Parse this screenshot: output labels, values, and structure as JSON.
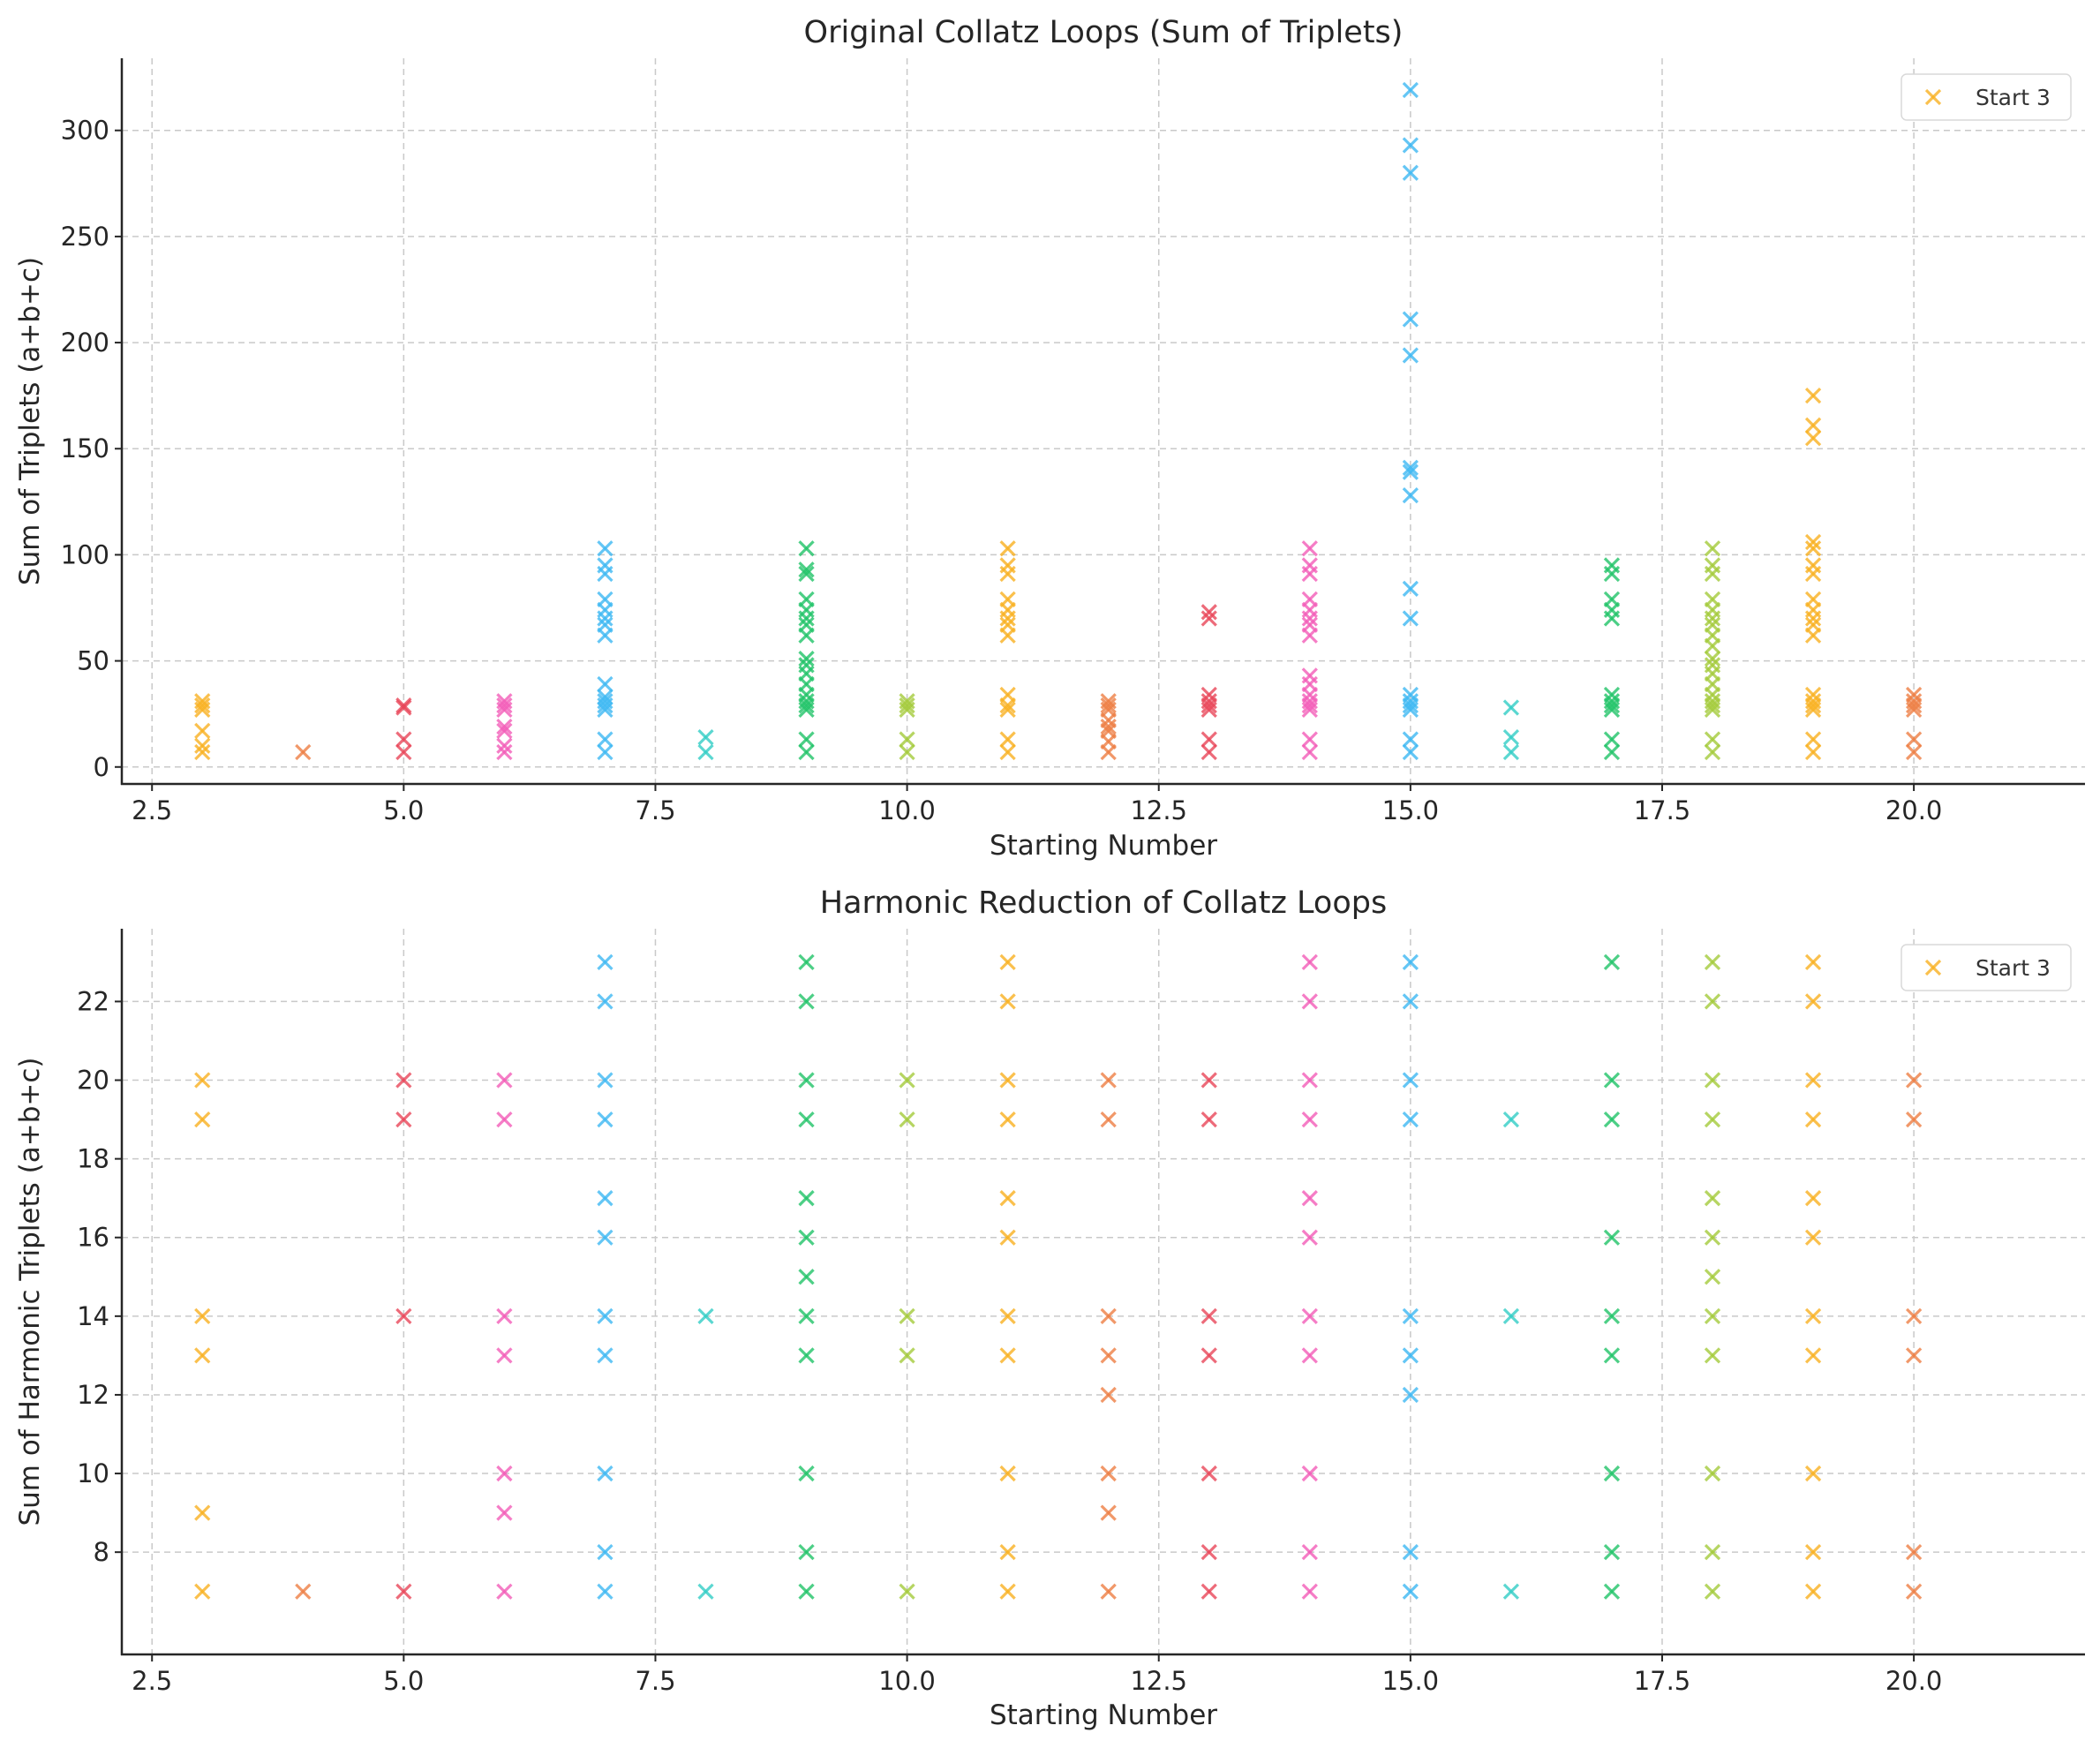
{
  "figure": {
    "background": "#ffffff"
  },
  "palette": {
    "3": "#F9B020",
    "4": "#EE7E43",
    "5": "#E94659",
    "6": "#F25CB8",
    "7": "#3DB8F2",
    "8": "#32CDC5",
    "9": "#21C368",
    "10": "#A4CB3B",
    "11": "#F9B020",
    "12": "#EE7E43",
    "13": "#E94659",
    "14": "#F25CB8",
    "15": "#3DB8F2",
    "16": "#32CDC5",
    "17": "#21C368",
    "18": "#A4CB3B",
    "19": "#F9B020",
    "20": "#EE7E43"
  },
  "chart_data": [
    {
      "type": "scatter",
      "marker": "x",
      "title": "Original Collatz Loops (Sum of Triplets)",
      "xlabel": "Starting Number",
      "ylabel": "Sum of Triplets (a+b+c)",
      "xlim": [
        2.2,
        21.7
      ],
      "ylim": [
        -8,
        334
      ],
      "xticks": [
        2.5,
        5.0,
        7.5,
        10.0,
        12.5,
        15.0,
        17.5,
        20.0
      ],
      "xtick_labels": [
        "2.5",
        "5.0",
        "7.5",
        "10.0",
        "12.5",
        "15.0",
        "17.5",
        "20.0"
      ],
      "yticks": [
        0,
        50,
        100,
        150,
        200,
        250,
        300
      ],
      "ytick_labels": [
        "0",
        "50",
        "100",
        "150",
        "200",
        "250",
        "300"
      ],
      "grid": true,
      "legend": {
        "position": "top-right",
        "entries": [
          {
            "label": "Start 3",
            "color": "#F9B020"
          }
        ]
      },
      "series": [
        {
          "start": 3,
          "x": 3,
          "y": [
            7,
            10,
            17,
            27,
            29,
            31
          ]
        },
        {
          "start": 4,
          "x": 4,
          "y": [
            7
          ]
        },
        {
          "start": 5,
          "x": 5,
          "y": [
            7,
            13,
            28,
            29
          ]
        },
        {
          "start": 6,
          "x": 6,
          "y": [
            7,
            10,
            17,
            19,
            27,
            29,
            31
          ]
        },
        {
          "start": 7,
          "x": 7,
          "y": [
            7,
            13,
            27,
            29,
            31,
            33,
            39,
            62,
            67,
            70,
            74,
            79,
            91,
            95,
            103
          ]
        },
        {
          "start": 8,
          "x": 8,
          "y": [
            7,
            14
          ]
        },
        {
          "start": 9,
          "x": 9,
          "y": [
            7,
            13,
            27,
            29,
            31,
            34,
            39,
            44,
            48,
            51,
            62,
            67,
            70,
            74,
            79,
            91,
            93,
            103
          ]
        },
        {
          "start": 10,
          "x": 10,
          "y": [
            7,
            13,
            27,
            29,
            31
          ]
        },
        {
          "start": 11,
          "x": 11,
          "y": [
            7,
            13,
            27,
            29,
            34,
            62,
            67,
            70,
            74,
            79,
            91,
            95,
            103
          ]
        },
        {
          "start": 12,
          "x": 12,
          "y": [
            7,
            12,
            17,
            19,
            22,
            27,
            29,
            31
          ]
        },
        {
          "start": 13,
          "x": 13,
          "y": [
            7,
            13,
            27,
            29,
            31,
            34,
            70,
            73
          ]
        },
        {
          "start": 14,
          "x": 14,
          "y": [
            7,
            13,
            27,
            29,
            31,
            34,
            39,
            43,
            62,
            67,
            70,
            74,
            79,
            91,
            95,
            103
          ]
        },
        {
          "start": 15,
          "x": 15,
          "y": [
            7,
            13,
            27,
            29,
            31,
            34,
            70,
            84,
            128,
            139,
            141,
            194,
            211,
            280,
            293,
            319
          ]
        },
        {
          "start": 16,
          "x": 16,
          "y": [
            7,
            14,
            28
          ]
        },
        {
          "start": 17,
          "x": 17,
          "y": [
            7,
            13,
            27,
            29,
            31,
            34,
            70,
            74,
            79,
            91,
            95
          ]
        },
        {
          "start": 18,
          "x": 18,
          "y": [
            7,
            13,
            27,
            29,
            31,
            34,
            39,
            44,
            48,
            51,
            57,
            62,
            67,
            70,
            74,
            79,
            91,
            95,
            103
          ]
        },
        {
          "start": 19,
          "x": 19,
          "y": [
            7,
            13,
            27,
            29,
            31,
            34,
            62,
            67,
            70,
            74,
            79,
            91,
            95,
            103,
            106,
            155,
            161,
            175
          ]
        },
        {
          "start": 20,
          "x": 20,
          "y": [
            7,
            13,
            27,
            29,
            31,
            34
          ]
        }
      ]
    },
    {
      "type": "scatter",
      "marker": "x",
      "title": "Harmonic Reduction of Collatz Loops",
      "xlabel": "Starting Number",
      "ylabel": "Sum of Harmonic Triplets (a+b+c)",
      "xlim": [
        2.2,
        21.7
      ],
      "ylim": [
        5.4,
        23.85
      ],
      "xticks": [
        2.5,
        5.0,
        7.5,
        10.0,
        12.5,
        15.0,
        17.5,
        20.0
      ],
      "xtick_labels": [
        "2.5",
        "5.0",
        "7.5",
        "10.0",
        "12.5",
        "15.0",
        "17.5",
        "20.0"
      ],
      "yticks": [
        8,
        10,
        12,
        14,
        16,
        18,
        20,
        22
      ],
      "ytick_labels": [
        "8",
        "10",
        "12",
        "14",
        "16",
        "18",
        "20",
        "22"
      ],
      "grid": true,
      "legend": {
        "position": "top-right",
        "entries": [
          {
            "label": "Start 3",
            "color": "#F9B020"
          }
        ]
      },
      "series": [
        {
          "start": 3,
          "x": 3,
          "y": [
            7,
            9,
            13,
            14,
            19,
            20
          ]
        },
        {
          "start": 4,
          "x": 4,
          "y": [
            7
          ]
        },
        {
          "start": 5,
          "x": 5,
          "y": [
            7,
            14,
            19,
            20
          ]
        },
        {
          "start": 6,
          "x": 6,
          "y": [
            7,
            9,
            10,
            13,
            14,
            19,
            20
          ]
        },
        {
          "start": 7,
          "x": 7,
          "y": [
            7,
            8,
            10,
            13,
            14,
            16,
            17,
            19,
            20,
            22,
            23
          ]
        },
        {
          "start": 8,
          "x": 8,
          "y": [
            7,
            14
          ]
        },
        {
          "start": 9,
          "x": 9,
          "y": [
            7,
            8,
            10,
            13,
            14,
            15,
            16,
            17,
            19,
            20,
            22,
            23
          ]
        },
        {
          "start": 10,
          "x": 10,
          "y": [
            7,
            13,
            14,
            19,
            20
          ]
        },
        {
          "start": 11,
          "x": 11,
          "y": [
            7,
            8,
            10,
            13,
            14,
            16,
            17,
            19,
            20,
            22,
            23
          ]
        },
        {
          "start": 12,
          "x": 12,
          "y": [
            7,
            9,
            10,
            12,
            13,
            14,
            19,
            20
          ]
        },
        {
          "start": 13,
          "x": 13,
          "y": [
            7,
            8,
            10,
            13,
            14,
            19,
            20
          ]
        },
        {
          "start": 14,
          "x": 14,
          "y": [
            7,
            8,
            10,
            13,
            14,
            16,
            17,
            19,
            20,
            22,
            23
          ]
        },
        {
          "start": 15,
          "x": 15,
          "y": [
            7,
            8,
            12,
            13,
            14,
            19,
            20,
            22,
            23
          ]
        },
        {
          "start": 16,
          "x": 16,
          "y": [
            7,
            14,
            19
          ]
        },
        {
          "start": 17,
          "x": 17,
          "y": [
            7,
            8,
            10,
            13,
            14,
            16,
            19,
            20,
            23
          ]
        },
        {
          "start": 18,
          "x": 18,
          "y": [
            7,
            8,
            10,
            13,
            14,
            15,
            16,
            17,
            19,
            20,
            22,
            23
          ]
        },
        {
          "start": 19,
          "x": 19,
          "y": [
            7,
            8,
            10,
            13,
            14,
            16,
            17,
            19,
            20,
            22,
            23
          ]
        },
        {
          "start": 20,
          "x": 20,
          "y": [
            7,
            8,
            13,
            14,
            19,
            20
          ]
        }
      ]
    }
  ]
}
